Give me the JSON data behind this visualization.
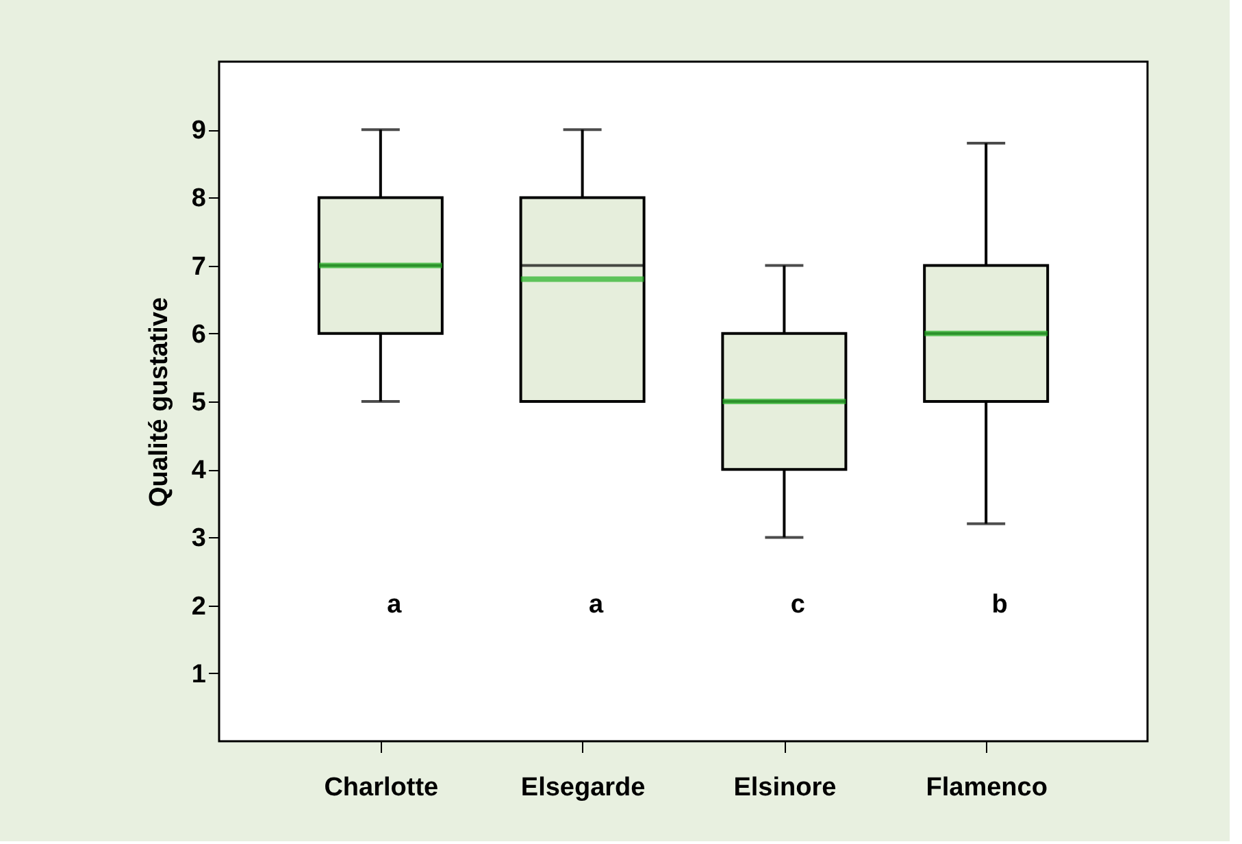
{
  "chart_data": {
    "type": "box",
    "ylabel": "Qualité gustative",
    "categories": [
      "Charlotte",
      "Elsegarde",
      "Elsinore",
      "Flamenco"
    ],
    "series": [
      {
        "color": "#e6eedc",
        "boxes": [
          {
            "low": 5,
            "q1": 6,
            "median": 7,
            "q3": 8,
            "high": 9,
            "mean": 7
          },
          {
            "low": 5,
            "q1": 5,
            "median": 7,
            "q3": 8,
            "high": 9,
            "mean": 6.8
          },
          {
            "low": 3,
            "q1": 4,
            "median": 5,
            "q3": 6,
            "high": 7,
            "mean": 5
          },
          {
            "low": 3.2,
            "q1": 5,
            "median": 6,
            "q3": 7,
            "high": 8.8,
            "mean": 6
          }
        ]
      }
    ],
    "ylim": [
      0,
      10
    ],
    "yticks": [
      1,
      2,
      3,
      4,
      5,
      6,
      7,
      8,
      9
    ],
    "grid": false,
    "annotations": [
      "a",
      "a",
      "c",
      "b"
    ]
  }
}
